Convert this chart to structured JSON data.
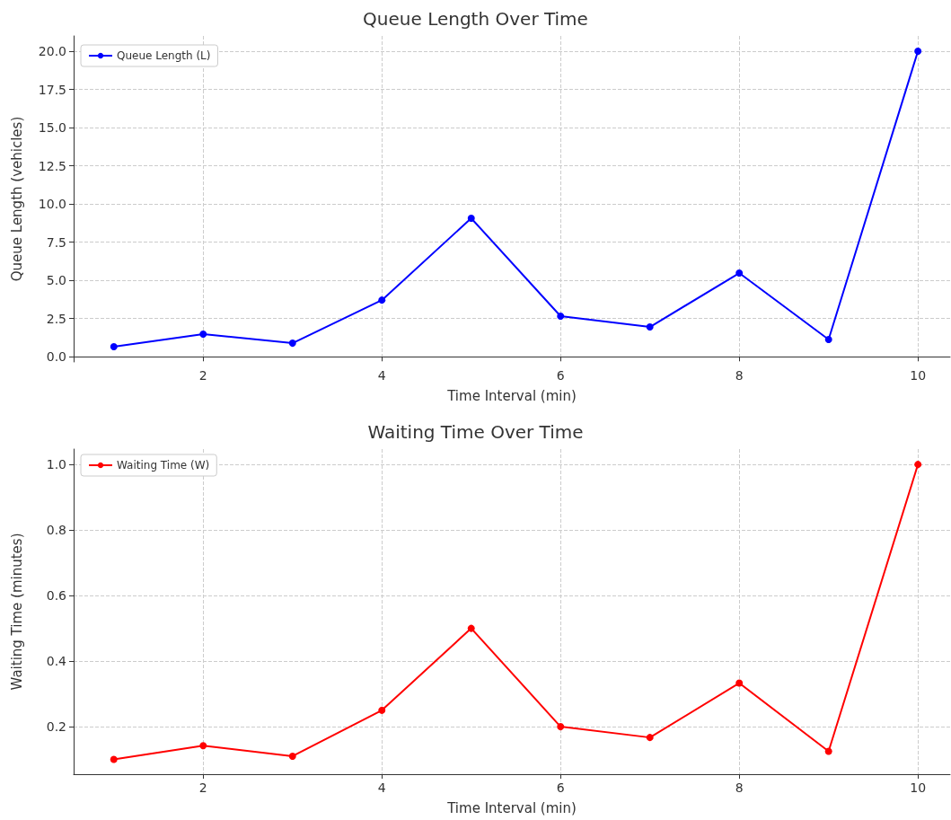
{
  "chart_data": [
    {
      "type": "line",
      "title": "Queue Length Over Time",
      "xlabel": "Time Interval (min)",
      "ylabel": "Queue Length (vehicles)",
      "x": [
        1,
        2,
        3,
        4,
        5,
        6,
        7,
        8,
        9,
        10
      ],
      "series": [
        {
          "name": "Queue Length (L)",
          "color": "#0000ff",
          "values": [
            0.65,
            1.47,
            0.88,
            3.7,
            9.06,
            2.65,
            1.94,
            5.47,
            1.12,
            20.0
          ]
        }
      ],
      "xlim": [
        0.55,
        10.36
      ],
      "xticks": [
        2,
        4,
        6,
        8,
        10
      ],
      "ylim": [
        -0.35,
        21.0
      ],
      "yticks": [
        {
          "value": 0,
          "label": "0.0"
        },
        2.5,
        {
          "value": 5,
          "label": "5.0"
        },
        7.5,
        {
          "value": 10,
          "label": "10.0"
        },
        12.5,
        {
          "value": 15,
          "label": "15.0"
        },
        17.5,
        {
          "value": 20,
          "label": "20.0"
        }
      ],
      "grid": true,
      "legend": "top left",
      "marker": "circle",
      "line_style": "solid"
    },
    {
      "type": "line",
      "title": "Waiting Time Over Time",
      "xlabel": "Time Interval (min)",
      "ylabel": "Waiting Time (minutes)",
      "x": [
        1,
        2,
        3,
        4,
        5,
        6,
        7,
        8,
        9,
        10
      ],
      "series": [
        {
          "name": "Waiting Time (W)",
          "color": "#ff0000",
          "values": [
            0.1,
            0.142,
            0.11,
            0.25,
            0.5,
            0.2,
            0.167,
            0.333,
            0.125,
            1.0
          ]
        }
      ],
      "xlim": [
        0.55,
        10.36
      ],
      "xticks": [
        2,
        4,
        6,
        8,
        10
      ],
      "ylim": [
        0.055,
        1.047
      ],
      "yticks": [
        0.2,
        0.4,
        0.6,
        0.8,
        {
          "value": 1,
          "label": "1.0"
        }
      ],
      "grid": true,
      "legend": "top left",
      "marker": "circle",
      "line_style": "solid"
    }
  ]
}
